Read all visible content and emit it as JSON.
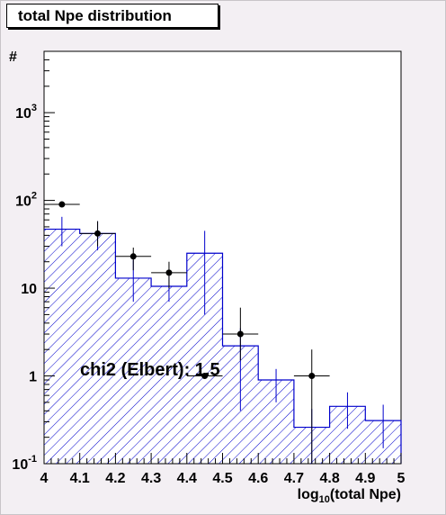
{
  "chart_data": {
    "type": "histogram",
    "title": "total Npe distribution",
    "xlabel": "log",
    "xlabel_sub": "10",
    "xlabel_rest": "(total Npe)",
    "ylabel": "#",
    "xlim": [
      4,
      5
    ],
    "ylim": [
      0.1,
      5000
    ],
    "y_scale": "log",
    "x_ticks": [
      "4",
      "4.1",
      "4.2",
      "4.3",
      "4.4",
      "4.5",
      "4.6",
      "4.7",
      "4.8",
      "4.9",
      "5"
    ],
    "y_ticks": [
      {
        "value": 0.1,
        "base": "10",
        "exp": "-1"
      },
      {
        "value": 1,
        "base": "1",
        "exp": ""
      },
      {
        "value": 10,
        "base": "10",
        "exp": ""
      },
      {
        "value": 100,
        "base": "10",
        "exp": "2"
      },
      {
        "value": 1000,
        "base": "10",
        "exp": "3"
      }
    ],
    "bin_edges": [
      4.0,
      4.1,
      4.2,
      4.3,
      4.4,
      4.5,
      4.6,
      4.7,
      4.8,
      4.9,
      5.0
    ],
    "simulation": {
      "values": [
        47,
        42,
        13,
        10.5,
        25,
        2.2,
        0.9,
        0.26,
        0.45,
        0.31
      ],
      "err_low": [
        30,
        27,
        7,
        7,
        5,
        0.4,
        0.5,
        0.1,
        0.25,
        0.15
      ],
      "err_high": [
        65,
        58,
        21,
        16,
        45,
        3.5,
        1.2,
        0.42,
        0.65,
        0.47
      ],
      "fill": "hatched",
      "color": "#0000cc"
    },
    "data_points": [
      {
        "x": 4.05,
        "y": 90
      },
      {
        "x": 4.15,
        "y": 42,
        "y_low": 30,
        "y_high": 58
      },
      {
        "x": 4.25,
        "y": 23,
        "y_low": 16,
        "y_high": 29
      },
      {
        "x": 4.35,
        "y": 15,
        "y_low": 10,
        "y_high": 20
      },
      {
        "x": 4.45,
        "y": 1
      },
      {
        "x": 4.55,
        "y": 3,
        "y_low": 1.5,
        "y_high": 6
      },
      {
        "x": 4.75,
        "y": 1,
        "y_low": 0.1,
        "y_high": 2
      }
    ],
    "annotation": "chi2 (Elbert): 1.5"
  }
}
